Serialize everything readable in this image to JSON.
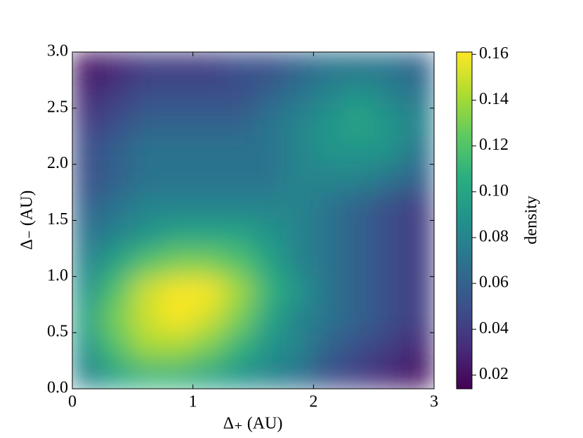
{
  "chart_data": {
    "type": "heatmap",
    "xlabel": "Δ₊ (AU)",
    "ylabel": "Δ₋ (AU)",
    "colorbar_label": "density",
    "colormap": "viridis",
    "xlim": [
      0,
      3
    ],
    "ylim": [
      0,
      3
    ],
    "xticks": [
      0,
      1,
      2,
      3
    ],
    "yticks": [
      {
        "value": 0,
        "label": "0.0"
      },
      0.5,
      {
        "value": 1,
        "label": "1.0"
      },
      1.5,
      {
        "value": 2,
        "label": "2.0"
      },
      2.5,
      {
        "value": 3,
        "label": "3.0"
      }
    ],
    "clim": [
      0.014,
      0.161
    ],
    "cticks": [
      0.02,
      0.04,
      0.06,
      0.08,
      {
        "value": 0.1,
        "label": "0.10"
      },
      0.12,
      0.14,
      0.16
    ],
    "x": [
      0.125,
      0.375,
      0.625,
      0.875,
      1.125,
      1.375,
      1.625,
      1.875,
      2.125,
      2.375,
      2.625,
      2.875
    ],
    "y": [
      0.125,
      0.375,
      0.625,
      0.875,
      1.125,
      1.375,
      1.625,
      1.875,
      2.125,
      2.375,
      2.625,
      2.875
    ],
    "z": [
      [
        0.08,
        0.1,
        0.11,
        0.11,
        0.1,
        0.09,
        0.08,
        0.07,
        0.05,
        0.04,
        0.03,
        0.02
      ],
      [
        0.09,
        0.12,
        0.14,
        0.14,
        0.13,
        0.11,
        0.09,
        0.08,
        0.06,
        0.05,
        0.04,
        0.03
      ],
      [
        0.1,
        0.13,
        0.15,
        0.16,
        0.15,
        0.13,
        0.1,
        0.08,
        0.07,
        0.06,
        0.05,
        0.04
      ],
      [
        0.09,
        0.12,
        0.15,
        0.16,
        0.16,
        0.14,
        0.11,
        0.09,
        0.07,
        0.06,
        0.05,
        0.04
      ],
      [
        0.08,
        0.1,
        0.12,
        0.13,
        0.13,
        0.12,
        0.1,
        0.08,
        0.07,
        0.06,
        0.05,
        0.04
      ],
      [
        0.07,
        0.08,
        0.09,
        0.1,
        0.1,
        0.1,
        0.09,
        0.08,
        0.07,
        0.06,
        0.05,
        0.04
      ],
      [
        0.06,
        0.07,
        0.08,
        0.08,
        0.08,
        0.08,
        0.08,
        0.08,
        0.07,
        0.06,
        0.05,
        0.04
      ],
      [
        0.05,
        0.06,
        0.07,
        0.07,
        0.07,
        0.07,
        0.07,
        0.08,
        0.08,
        0.08,
        0.07,
        0.06
      ],
      [
        0.05,
        0.06,
        0.07,
        0.07,
        0.07,
        0.07,
        0.07,
        0.08,
        0.09,
        0.09,
        0.09,
        0.07
      ],
      [
        0.04,
        0.05,
        0.06,
        0.06,
        0.06,
        0.06,
        0.07,
        0.08,
        0.09,
        0.1,
        0.09,
        0.08
      ],
      [
        0.03,
        0.04,
        0.05,
        0.05,
        0.05,
        0.05,
        0.06,
        0.07,
        0.08,
        0.09,
        0.08,
        0.07
      ],
      [
        0.02,
        0.03,
        0.04,
        0.04,
        0.04,
        0.05,
        0.05,
        0.06,
        0.07,
        0.07,
        0.07,
        0.06
      ]
    ]
  }
}
